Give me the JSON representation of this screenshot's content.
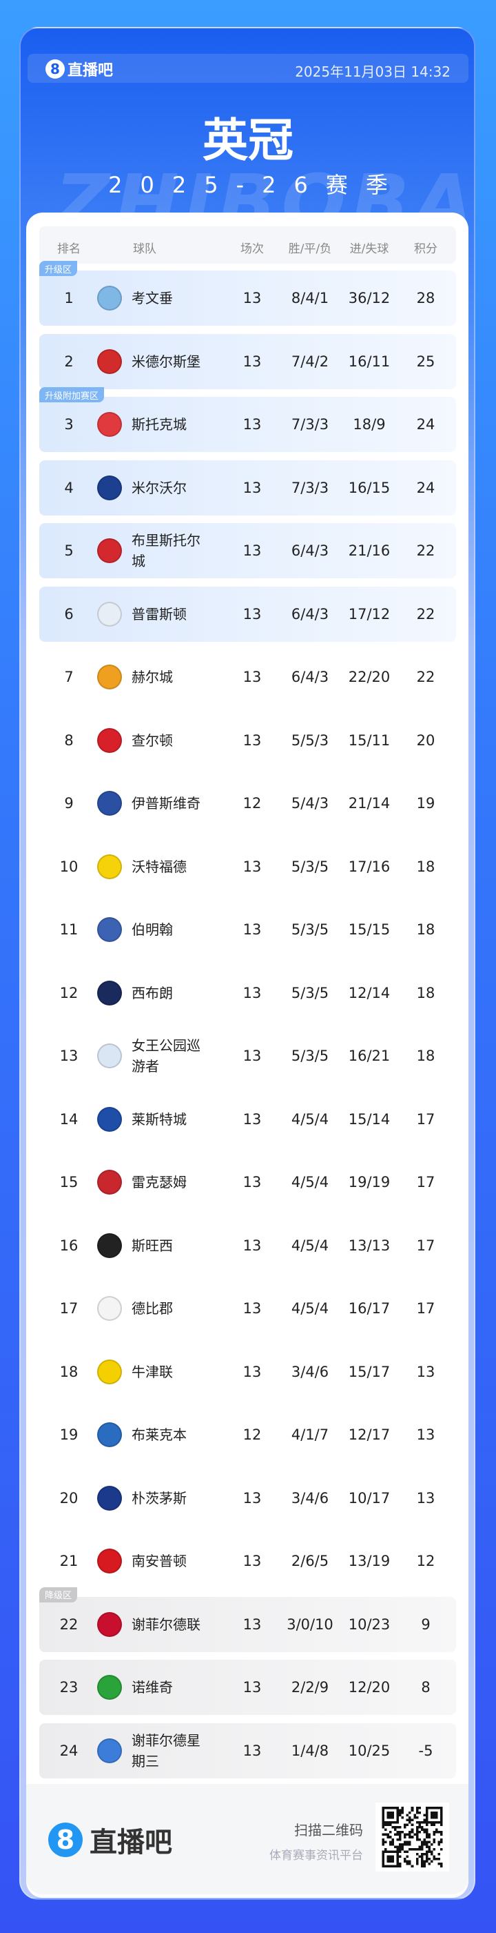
{
  "header": {
    "brand": "直播吧",
    "datetime": "2025年11月03日 14:32",
    "title": "英冠",
    "season": "2025-26赛季",
    "watermark": "ZHIBOBA"
  },
  "columns": [
    "排名",
    "球队",
    "场次",
    "胜/平/负",
    "进/失球",
    "积分"
  ],
  "zones": {
    "promotion": "升级区",
    "playoff": "升级附加赛区",
    "relegation": "降级区"
  },
  "colors": {
    "promotion_tag": "#7db5f5",
    "relegation_tag": "#c9c9cc",
    "accent": "#1a5ef0"
  },
  "rows": [
    {
      "rank": "1",
      "team": "考文垂",
      "played": "13",
      "wdl": "8/4/1",
      "goals": "36/12",
      "pts": "28",
      "zone": "promotion",
      "logo": "#7fb8e6"
    },
    {
      "rank": "2",
      "team": "米德尔斯堡",
      "played": "13",
      "wdl": "7/4/2",
      "goals": "16/11",
      "pts": "25",
      "zone": "promotion",
      "logo": "#d22b2b"
    },
    {
      "rank": "3",
      "team": "斯托克城",
      "played": "13",
      "wdl": "7/3/3",
      "goals": "18/9",
      "pts": "24",
      "zone": "playoff",
      "logo": "#e03a3e"
    },
    {
      "rank": "4",
      "team": "米尔沃尔",
      "played": "13",
      "wdl": "7/3/3",
      "goals": "16/15",
      "pts": "24",
      "zone": "playoff",
      "logo": "#1c3f8f"
    },
    {
      "rank": "5",
      "team": "布里斯托尔城",
      "played": "13",
      "wdl": "6/4/3",
      "goals": "21/16",
      "pts": "22",
      "zone": "playoff",
      "logo": "#d2282e"
    },
    {
      "rank": "6",
      "team": "普雷斯顿",
      "played": "13",
      "wdl": "6/4/3",
      "goals": "17/12",
      "pts": "22",
      "zone": "playoff",
      "logo": "#e8eef6"
    },
    {
      "rank": "7",
      "team": "赫尔城",
      "played": "13",
      "wdl": "6/4/3",
      "goals": "22/20",
      "pts": "22",
      "zone": "",
      "logo": "#f0a020"
    },
    {
      "rank": "8",
      "team": "查尔顿",
      "played": "13",
      "wdl": "5/5/3",
      "goals": "15/11",
      "pts": "20",
      "zone": "",
      "logo": "#d8202a"
    },
    {
      "rank": "9",
      "team": "伊普斯维奇",
      "played": "12",
      "wdl": "5/4/3",
      "goals": "21/14",
      "pts": "19",
      "zone": "",
      "logo": "#2b4fa3"
    },
    {
      "rank": "10",
      "team": "沃特福德",
      "played": "13",
      "wdl": "5/3/5",
      "goals": "17/16",
      "pts": "18",
      "zone": "",
      "logo": "#f6d20a"
    },
    {
      "rank": "11",
      "team": "伯明翰",
      "played": "13",
      "wdl": "5/3/5",
      "goals": "15/15",
      "pts": "18",
      "zone": "",
      "logo": "#3b62b3"
    },
    {
      "rank": "12",
      "team": "西布朗",
      "played": "13",
      "wdl": "5/3/5",
      "goals": "12/14",
      "pts": "18",
      "zone": "",
      "logo": "#1b2a5c"
    },
    {
      "rank": "13",
      "team": "女王公园巡游者",
      "played": "13",
      "wdl": "5/3/5",
      "goals": "16/21",
      "pts": "18",
      "zone": "",
      "logo": "#dbe6f5"
    },
    {
      "rank": "14",
      "team": "莱斯特城",
      "played": "13",
      "wdl": "4/5/4",
      "goals": "15/14",
      "pts": "17",
      "zone": "",
      "logo": "#1f4ea8"
    },
    {
      "rank": "15",
      "team": "雷克瑟姆",
      "played": "13",
      "wdl": "4/5/4",
      "goals": "19/19",
      "pts": "17",
      "zone": "",
      "logo": "#c8272e"
    },
    {
      "rank": "16",
      "team": "斯旺西",
      "played": "13",
      "wdl": "4/5/4",
      "goals": "13/13",
      "pts": "17",
      "zone": "",
      "logo": "#222222"
    },
    {
      "rank": "17",
      "team": "德比郡",
      "played": "13",
      "wdl": "4/5/4",
      "goals": "16/17",
      "pts": "17",
      "zone": "",
      "logo": "#f4f4f4"
    },
    {
      "rank": "18",
      "team": "牛津联",
      "played": "13",
      "wdl": "3/4/6",
      "goals": "15/17",
      "pts": "13",
      "zone": "",
      "logo": "#f5d000"
    },
    {
      "rank": "19",
      "team": "布莱克本",
      "played": "12",
      "wdl": "4/1/7",
      "goals": "12/17",
      "pts": "13",
      "zone": "",
      "logo": "#2a6cc0"
    },
    {
      "rank": "20",
      "team": "朴茨茅斯",
      "played": "13",
      "wdl": "3/4/6",
      "goals": "10/17",
      "pts": "13",
      "zone": "",
      "logo": "#1c3a8c"
    },
    {
      "rank": "21",
      "team": "南安普顿",
      "played": "13",
      "wdl": "2/6/5",
      "goals": "13/19",
      "pts": "12",
      "zone": "",
      "logo": "#d71920"
    },
    {
      "rank": "22",
      "team": "谢菲尔德联",
      "played": "13",
      "wdl": "3/0/10",
      "goals": "10/23",
      "pts": "9",
      "zone": "relegation",
      "logo": "#c8102e"
    },
    {
      "rank": "23",
      "team": "诺维奇",
      "played": "13",
      "wdl": "2/2/9",
      "goals": "12/20",
      "pts": "8",
      "zone": "relegation",
      "logo": "#2aa33a"
    },
    {
      "rank": "24",
      "team": "谢菲尔德星期三",
      "played": "13",
      "wdl": "1/4/8",
      "goals": "10/25",
      "pts": "-5",
      "zone": "relegation",
      "logo": "#3b7dd8"
    }
  ],
  "footer": {
    "brand": "直播吧",
    "scan": "扫描二维码",
    "platform": "体育赛事资讯平台"
  }
}
